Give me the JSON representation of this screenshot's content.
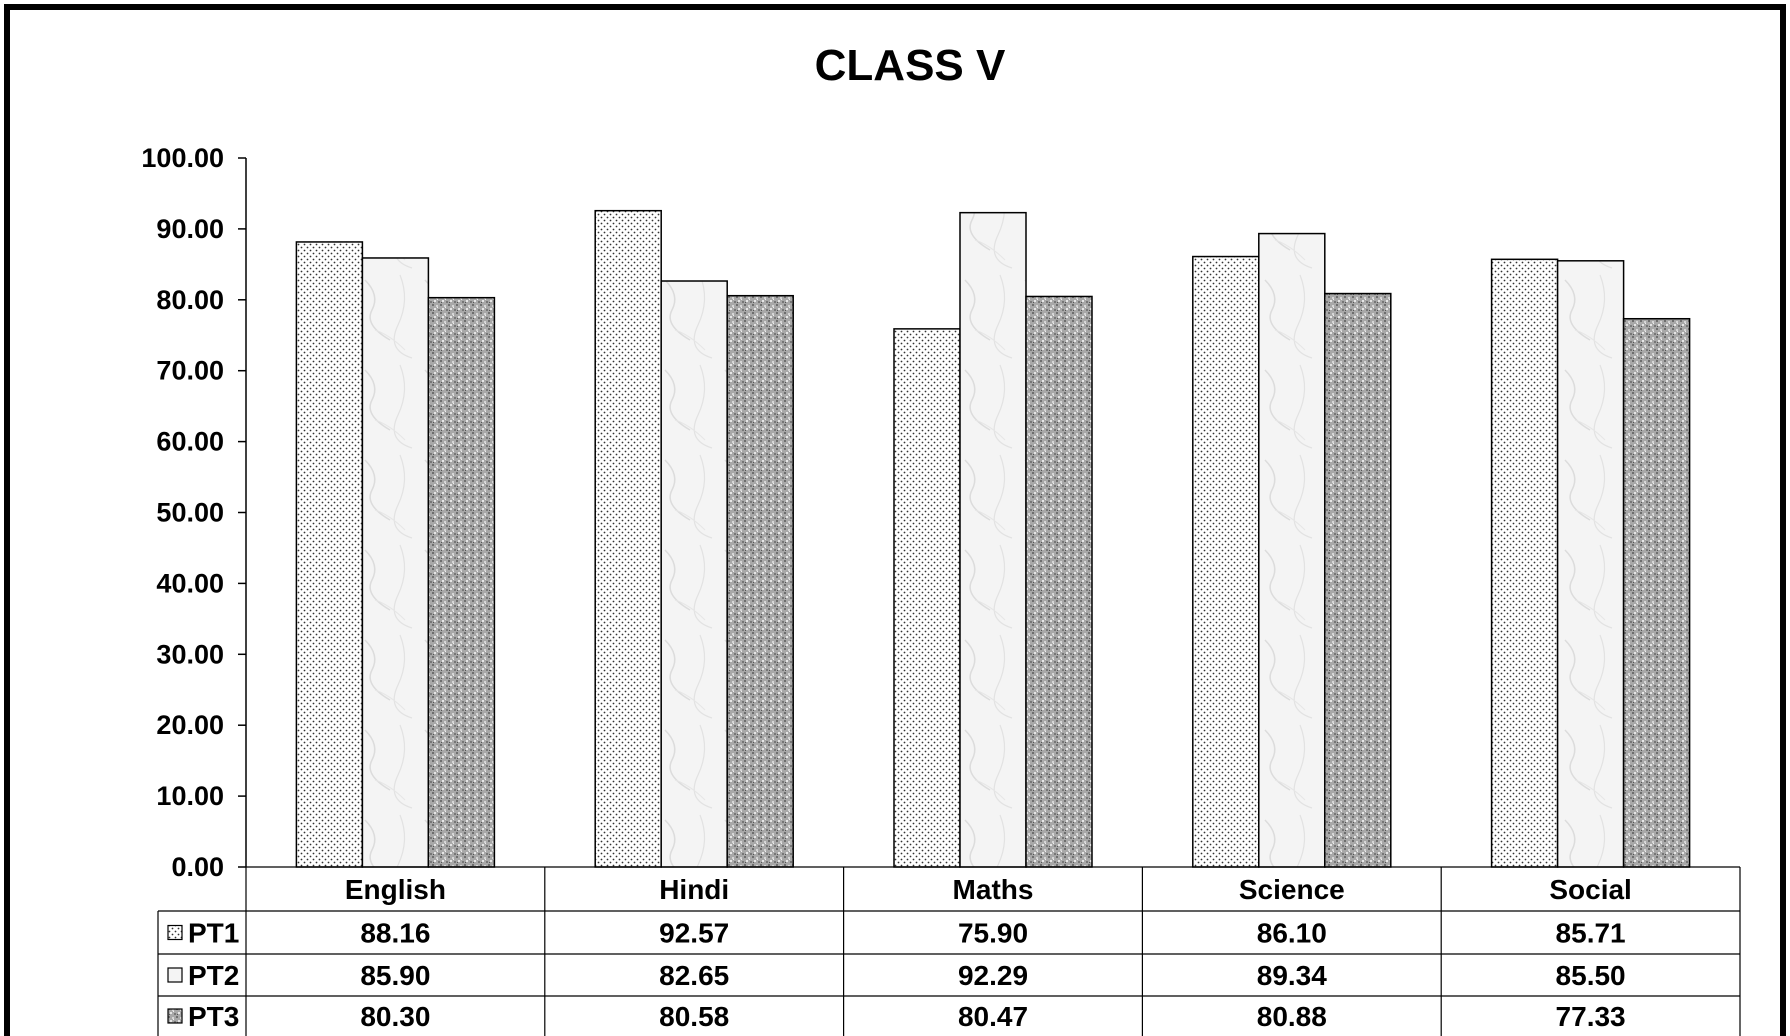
{
  "chart_data": {
    "type": "bar",
    "title": "CLASS V",
    "xlabel": "",
    "ylabel": "",
    "ylim": [
      0,
      100
    ],
    "yticks": [
      "0.00",
      "10.00",
      "20.00",
      "30.00",
      "40.00",
      "50.00",
      "60.00",
      "70.00",
      "80.00",
      "90.00",
      "100.00"
    ],
    "categories": [
      "English",
      "Hindi",
      "Maths",
      "Science",
      "Social"
    ],
    "series": [
      {
        "name": "PT1",
        "values": [
          88.16,
          92.57,
          75.9,
          86.1,
          85.71
        ],
        "labels": [
          "88.16",
          "92.57",
          "75.90",
          "86.10",
          "85.71"
        ],
        "pattern": "dots"
      },
      {
        "name": "PT2",
        "values": [
          85.9,
          82.65,
          92.29,
          89.34,
          85.5
        ],
        "labels": [
          "85.90",
          "82.65",
          "92.29",
          "89.34",
          "85.50"
        ],
        "pattern": "marble"
      },
      {
        "name": "PT3",
        "values": [
          80.3,
          80.58,
          80.47,
          80.88,
          77.33
        ],
        "labels": [
          "80.30",
          "80.58",
          "80.47",
          "80.88",
          "77.33"
        ],
        "pattern": "granite"
      }
    ],
    "grid": false,
    "legend": "data-table"
  }
}
